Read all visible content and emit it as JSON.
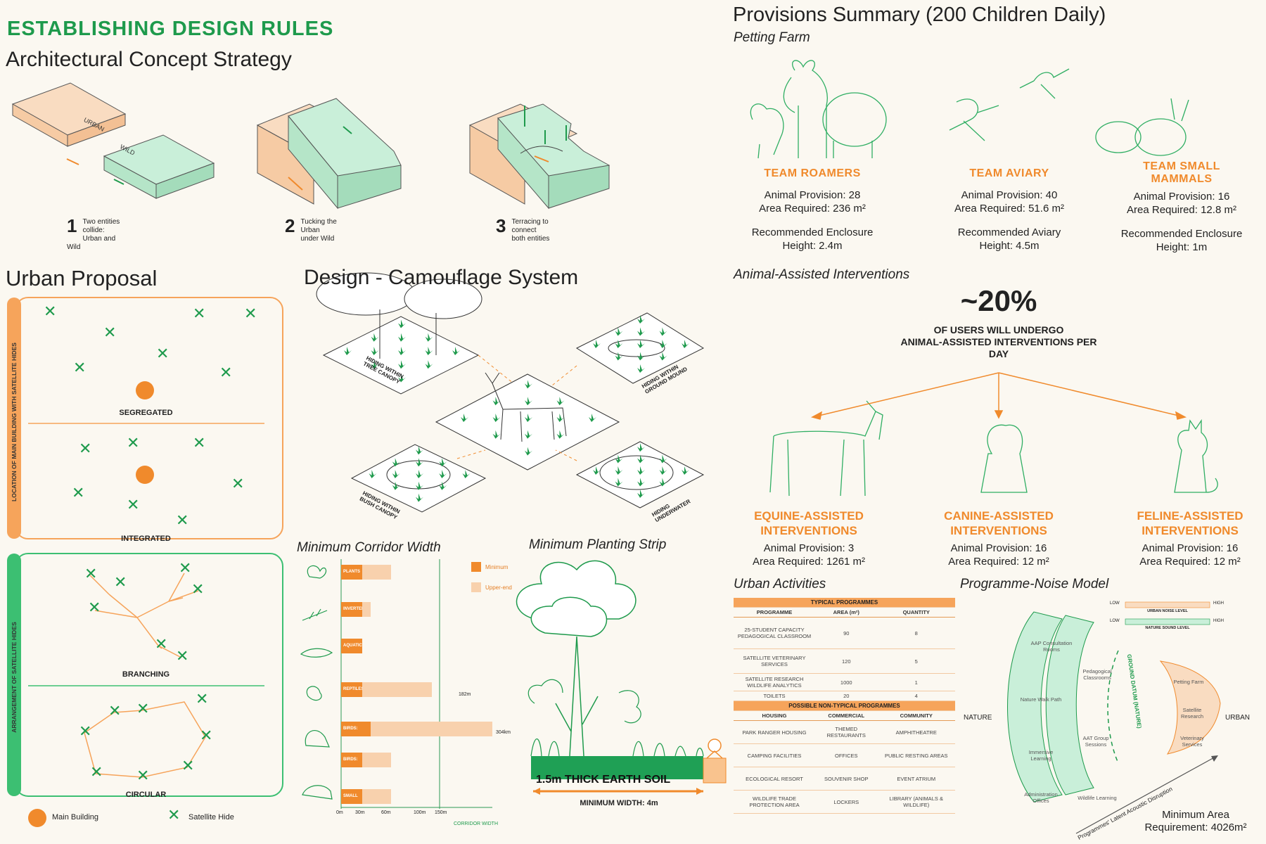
{
  "header": {
    "rules_title": "ESTABLISHING DESIGN RULES",
    "concept_title": "Architectural Concept Strategy"
  },
  "concept": {
    "label_urban": "URBAN",
    "label_wild": "WILD",
    "steps": [
      {
        "num": "1",
        "text_line1": "Two entities collide:",
        "text_line2": "Urban and Wild"
      },
      {
        "num": "2",
        "text_line1": "Tucking the Urban",
        "text_line2": "under Wild"
      },
      {
        "num": "3",
        "text_line1": "Terracing to connect",
        "text_line2": "both entities"
      }
    ]
  },
  "urban_proposal": {
    "title": "Urban Proposal",
    "side_label_top": "LOCATION OF MAIN BUILDING WITH SATELLITE HIDES",
    "side_label_bottom": "ARRANGEMENT OF SATELLITE HIDES",
    "panels": [
      "SEGREGATED",
      "INTEGRATED",
      "BRANCHING",
      "CIRCULAR"
    ],
    "legend": {
      "main": "Main Building",
      "satellite": "Satellite Hide"
    }
  },
  "camouflage": {
    "title": "Design - Camouflage System",
    "labels": [
      "HIDING WITHIN TREE CANOPY",
      "HIDING WITHIN GROUND MOUND",
      "HIDING WITHIN BUSH CANOPY",
      "HIDING UNDERWATER"
    ]
  },
  "corridor": {
    "title": "Minimum Corridor Width",
    "legend_min": "Minimum",
    "legend_upper": "Upper-end",
    "axis_title": "CORRIDOR WIDTH",
    "ticks": [
      "0m",
      "30m",
      "60m",
      "100m",
      "150m"
    ],
    "label_182": "182m",
    "label_304": "304km"
  },
  "chart_data": {
    "type": "bar",
    "categories": [
      "PLANTS",
      "INVERTEBRATES",
      "AQUATIC SPECIES",
      "REPTILES & AMPHIBIANS",
      "BIRDS: INTERIOR SPECIES",
      "BIRDS: EDGE SPECIES",
      "SMALL MAMMALS"
    ],
    "series": [
      {
        "name": "Minimum",
        "values": [
          30,
          30,
          30,
          30,
          60,
          30,
          30
        ]
      },
      {
        "name": "Upper-end",
        "values": [
          100,
          60,
          30,
          182,
          304,
          100,
          100
        ]
      }
    ],
    "xlabel": "CORRIDOR WIDTH",
    "xlim": [
      0,
      304
    ]
  },
  "planting": {
    "title": "Minimum Planting Strip",
    "soil_label": "1.5m THICK EARTH SOIL",
    "width_label": "MINIMUM WIDTH: 4m"
  },
  "provisions": {
    "title": "Provisions Summary (200 Children Daily)",
    "petting_farm_label": "Petting Farm",
    "teams": [
      {
        "name_line1": "TEAM ROAMERS",
        "name_line2": "",
        "provision": "Animal Provision: 28",
        "area": "Area Required: 236 m²",
        "rec_line1": "Recommended Enclosure",
        "rec_line2": "Height: 2.4m"
      },
      {
        "name_line1": "TEAM AVIARY",
        "name_line2": "",
        "provision": "Animal Provision: 40",
        "area": "Area Required: 51.6 m²",
        "rec_line1": "Recommended Aviary",
        "rec_line2": "Height: 4.5m"
      },
      {
        "name_line1": "TEAM SMALL",
        "name_line2": "MAMMALS",
        "provision": "Animal Provision: 16",
        "area": "Area Required: 12.8 m²",
        "rec_line1": "Recommended Enclosure",
        "rec_line2": "Height: 1m"
      }
    ]
  },
  "aai": {
    "title": "Animal-Assisted Interventions",
    "percent": "~20%",
    "desc_line1": "OF USERS WILL UNDERGO",
    "desc_line2": "ANIMAL-ASSISTED INTERVENTIONS PER",
    "desc_line3": "DAY",
    "items": [
      {
        "name_line1": "EQUINE-ASSISTED",
        "name_line2": "INTERVENTIONS",
        "provision": "Animal Provision: 3",
        "area": "Area Required: 1261 m²"
      },
      {
        "name_line1": "CANINE-ASSISTED",
        "name_line2": "INTERVENTIONS",
        "provision": "Animal Provision: 16",
        "area": "Area Required: 12 m²"
      },
      {
        "name_line1": "FELINE-ASSISTED",
        "name_line2": "INTERVENTIONS",
        "provision": "Animal Provision: 16",
        "area": "Area Required: 12 m²"
      }
    ]
  },
  "urban_activities": {
    "title": "Urban Activities",
    "typical_header": "TYPICAL PROGRAMMES",
    "cols": [
      "PROGRAMME",
      "AREA (m²)",
      "QUANTITY"
    ],
    "rows": [
      {
        "name": "25-STUDENT CAPACITY PEDAGOGICAL CLASSROOM",
        "area": "90",
        "qty": "8"
      },
      {
        "name": "SATELLITE VETERINARY SERVICES",
        "area": "120",
        "qty": "5"
      },
      {
        "name": "SATELLITE RESEARCH WILDLIFE ANALYTICS",
        "area": "1000",
        "qty": "1"
      },
      {
        "name": "TOILETS",
        "area": "20",
        "qty": "4"
      }
    ],
    "nontypical_header": "POSSIBLE NON-TYPICAL PROGRAMMES",
    "nt_cols": [
      "HOUSING",
      "COMMERCIAL",
      "COMMUNITY"
    ],
    "nt_rows": [
      [
        "PARK RANGER HOUSING",
        "THEMED RESTAURANTS",
        "AMPHITHEATRE"
      ],
      [
        "CAMPING FACILITIES",
        "OFFICES",
        "PUBLIC RESTING AREAS"
      ],
      [
        "ECOLOGICAL RESORT",
        "SOUVENIR SHOP",
        "EVENT ATRIUM"
      ],
      [
        "WILDLIFE TRADE PROTECTION AREA",
        "LOCKERS",
        "LIBRARY (ANIMALS & WILDLIFE)"
      ]
    ]
  },
  "noise_model": {
    "title": "Programme-Noise Model",
    "low": "LOW",
    "high": "HIGH",
    "urban_noise": "URBAN NOISE LEVEL",
    "nature_sound": "NATURE SOUND LEVEL",
    "nature": "NATURE",
    "urban": "URBAN",
    "ground_datum": "GROUND DATUM (NATURE)",
    "axis": "Programmes' Latent Acoustic Disruption",
    "programmes": [
      "AAP Consultation Rooms",
      "Pedagogical Classrooms",
      "Nature Walk Path",
      "AAT Group Sessions",
      "Immersive Learning",
      "Administration Offices",
      "Wildlife Learning",
      "Petting Farm",
      "Satellite Research",
      "Veterinary Services"
    ],
    "min_area_line1": "Minimum Area",
    "min_area_line2": "Requirement: 4026m²"
  },
  "colors": {
    "green": "#1e9a4c",
    "orange": "#f08a2c",
    "mint": "#c9efd9",
    "peach": "#f9dcc1"
  }
}
